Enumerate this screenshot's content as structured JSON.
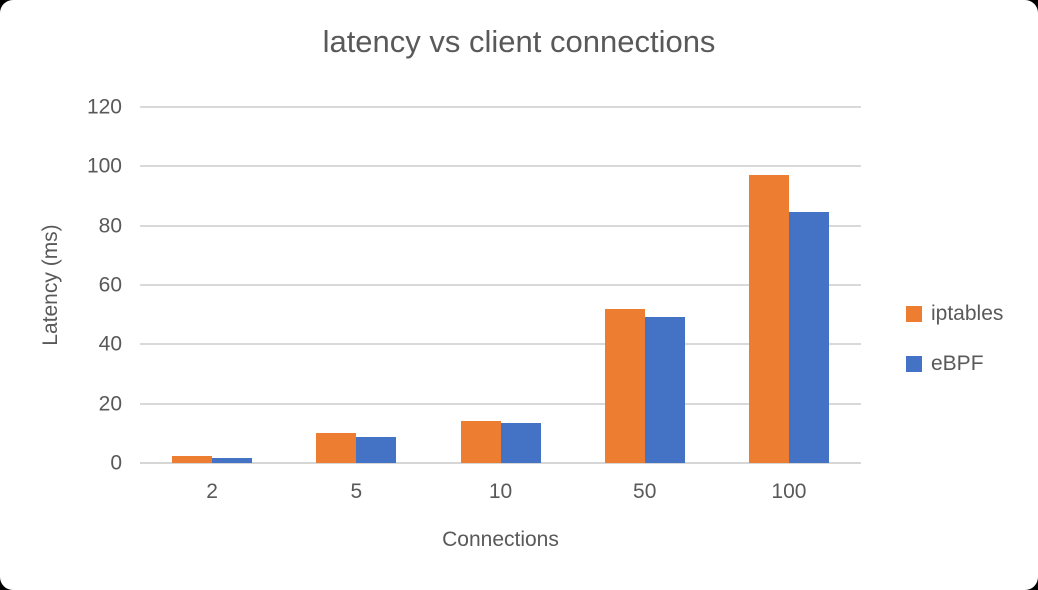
{
  "chart_data": {
    "type": "bar",
    "title": "latency vs client connections",
    "xlabel": "Connections",
    "ylabel": "Latency (ms)",
    "categories": [
      "2",
      "5",
      "10",
      "50",
      "100"
    ],
    "series": [
      {
        "name": "iptables",
        "color": "#ED7D31",
        "values": [
          2.2,
          10,
          14,
          52,
          97
        ]
      },
      {
        "name": "eBPF",
        "color": "#4472C4",
        "values": [
          1.8,
          8.7,
          13.4,
          49.3,
          84.5
        ]
      }
    ],
    "y_ticks": [
      0,
      20,
      40,
      60,
      80,
      100,
      120
    ],
    "ylim": [
      0,
      120
    ],
    "grid": true,
    "legend_position": "right",
    "colors": {
      "text": "#595959",
      "gridline": "#D9D9D9",
      "background": "#FFFFFF"
    }
  }
}
